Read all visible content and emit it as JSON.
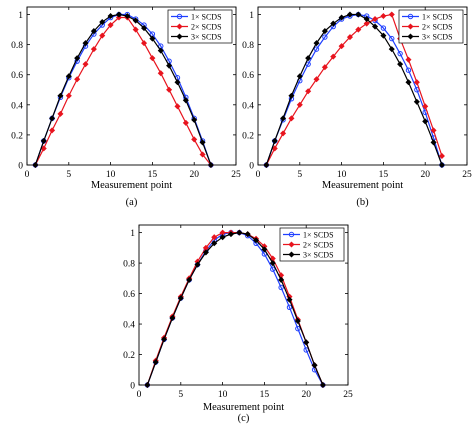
{
  "chart_data": [
    {
      "id": "a",
      "type": "line",
      "caption": "(a)",
      "xlabel": "Measurement point",
      "ylabel": "",
      "xlim": [
        0,
        25
      ],
      "ylim": [
        0,
        1.05
      ],
      "xticks": [
        0,
        5,
        10,
        15,
        20,
        25
      ],
      "yticks": [
        0,
        0.2,
        0.4,
        0.6,
        0.8,
        1
      ],
      "ytick_labels": [
        "0",
        "0.2",
        "0.4",
        "0.6",
        "0.8",
        "1"
      ],
      "grid": false,
      "legend_position": "top-right",
      "legend": [
        "1× SCDS",
        "2× SCDS",
        "3× SCDS"
      ],
      "series": [
        {
          "name": "1× SCDS",
          "color": "#1f3fff",
          "marker": "circle",
          "x": [
            1,
            2,
            3,
            4,
            5,
            6,
            7,
            8,
            9,
            10,
            11,
            12,
            13,
            14,
            15,
            16,
            17,
            18,
            19,
            20,
            21,
            22
          ],
          "y": [
            0.0,
            0.16,
            0.31,
            0.45,
            0.58,
            0.69,
            0.79,
            0.87,
            0.93,
            0.98,
            1.0,
            1.0,
            0.97,
            0.93,
            0.87,
            0.79,
            0.69,
            0.58,
            0.45,
            0.31,
            0.16,
            0.0
          ]
        },
        {
          "name": "2× SCDS",
          "color": "#e8141e",
          "marker": "diamond",
          "x": [
            1,
            2,
            3,
            4,
            5,
            6,
            7,
            8,
            9,
            10,
            11,
            12,
            13,
            14,
            15,
            16,
            17,
            18,
            19,
            20,
            21,
            22
          ],
          "y": [
            0.0,
            0.11,
            0.23,
            0.34,
            0.46,
            0.57,
            0.67,
            0.77,
            0.86,
            0.93,
            0.98,
            0.98,
            0.9,
            0.81,
            0.71,
            0.61,
            0.5,
            0.39,
            0.28,
            0.17,
            0.07,
            0.0
          ]
        },
        {
          "name": "3× SCDS",
          "color": "#000000",
          "marker": "diamond",
          "x": [
            1,
            2,
            3,
            4,
            5,
            6,
            7,
            8,
            9,
            10,
            11,
            12,
            13,
            14,
            15,
            16,
            17,
            18,
            19,
            20,
            21,
            22
          ],
          "y": [
            0.0,
            0.16,
            0.31,
            0.46,
            0.59,
            0.71,
            0.81,
            0.89,
            0.95,
            0.99,
            1.0,
            0.99,
            0.96,
            0.91,
            0.84,
            0.76,
            0.66,
            0.55,
            0.43,
            0.3,
            0.15,
            0.0
          ]
        }
      ]
    },
    {
      "id": "b",
      "type": "line",
      "caption": "(b)",
      "xlabel": "Measurement point",
      "ylabel": "",
      "xlim": [
        0,
        25
      ],
      "ylim": [
        0,
        1.05
      ],
      "xticks": [
        0,
        5,
        10,
        15,
        20,
        25
      ],
      "yticks": [
        0,
        0.2,
        0.4,
        0.6,
        0.8,
        1
      ],
      "ytick_labels": [
        "0",
        "0.2",
        "0.4",
        "0.6",
        "0.8",
        "1"
      ],
      "grid": false,
      "legend_position": "top-right",
      "legend": [
        "1× SCDS",
        "2× SCDS",
        "3× SCDS"
      ],
      "series": [
        {
          "name": "1× SCDS",
          "color": "#1f3fff",
          "marker": "circle",
          "x": [
            1,
            2,
            3,
            4,
            5,
            6,
            7,
            8,
            9,
            10,
            11,
            12,
            13,
            14,
            15,
            16,
            17,
            18,
            19,
            20,
            21,
            22
          ],
          "y": [
            0.0,
            0.16,
            0.3,
            0.44,
            0.56,
            0.67,
            0.77,
            0.85,
            0.92,
            0.97,
            0.99,
            1.0,
            0.99,
            0.96,
            0.91,
            0.84,
            0.74,
            0.63,
            0.5,
            0.35,
            0.18,
            0.0
          ]
        },
        {
          "name": "2× SCDS",
          "color": "#e8141e",
          "marker": "diamond",
          "x": [
            1,
            2,
            3,
            4,
            5,
            6,
            7,
            8,
            9,
            10,
            11,
            12,
            13,
            14,
            15,
            16,
            17,
            18,
            19,
            20,
            21,
            22
          ],
          "y": [
            0.0,
            0.11,
            0.21,
            0.31,
            0.4,
            0.49,
            0.57,
            0.65,
            0.72,
            0.79,
            0.85,
            0.9,
            0.94,
            0.97,
            0.99,
            1.0,
            0.84,
            0.7,
            0.55,
            0.39,
            0.23,
            0.06
          ]
        },
        {
          "name": "3× SCDS",
          "color": "#000000",
          "marker": "diamond",
          "x": [
            1,
            2,
            3,
            4,
            5,
            6,
            7,
            8,
            9,
            10,
            11,
            12,
            13,
            14,
            15,
            16,
            17,
            18,
            19,
            20,
            21,
            22
          ],
          "y": [
            0.0,
            0.16,
            0.31,
            0.46,
            0.59,
            0.71,
            0.81,
            0.89,
            0.94,
            0.98,
            1.0,
            1.0,
            0.97,
            0.92,
            0.86,
            0.77,
            0.67,
            0.55,
            0.42,
            0.29,
            0.15,
            0.0
          ]
        }
      ]
    },
    {
      "id": "c",
      "type": "line",
      "caption": "(c)",
      "xlabel": "Measurement point",
      "ylabel": "",
      "xlim": [
        0,
        25
      ],
      "ylim": [
        0,
        1.05
      ],
      "xticks": [
        0,
        5,
        10,
        15,
        20,
        25
      ],
      "yticks": [
        0,
        0.2,
        0.4,
        0.6,
        0.8,
        1
      ],
      "ytick_labels": [
        "0",
        "0.2",
        "0.4",
        "0.6",
        "0.8",
        "1"
      ],
      "grid": false,
      "legend_position": "top-right",
      "legend": [
        "1× SCDS",
        "2× SCDS",
        "3× SCDS"
      ],
      "series": [
        {
          "name": "1× SCDS",
          "color": "#1f3fff",
          "marker": "circle",
          "x": [
            1,
            2,
            3,
            4,
            5,
            6,
            7,
            8,
            9,
            10,
            11,
            12,
            13,
            14,
            15,
            16,
            17,
            18,
            19,
            20,
            21,
            22
          ],
          "y": [
            0.0,
            0.15,
            0.3,
            0.44,
            0.57,
            0.69,
            0.79,
            0.88,
            0.95,
            0.99,
            1.0,
            1.0,
            0.98,
            0.93,
            0.86,
            0.76,
            0.64,
            0.51,
            0.37,
            0.23,
            0.1,
            0.0
          ]
        },
        {
          "name": "2× SCDS",
          "color": "#e8141e",
          "marker": "diamond",
          "x": [
            1,
            2,
            3,
            4,
            5,
            6,
            7,
            8,
            9,
            10,
            11,
            12,
            13,
            14,
            15,
            16,
            17,
            18,
            19,
            20,
            21,
            22
          ],
          "y": [
            0.0,
            0.16,
            0.31,
            0.45,
            0.58,
            0.7,
            0.81,
            0.9,
            0.97,
            1.0,
            1.0,
            1.0,
            0.99,
            0.96,
            0.91,
            0.83,
            0.72,
            0.58,
            0.43,
            0.28,
            0.13,
            0.0
          ]
        },
        {
          "name": "3× SCDS",
          "color": "#000000",
          "marker": "diamond",
          "x": [
            1,
            2,
            3,
            4,
            5,
            6,
            7,
            8,
            9,
            10,
            11,
            12,
            13,
            14,
            15,
            16,
            17,
            18,
            19,
            20,
            21,
            22
          ],
          "y": [
            0.0,
            0.15,
            0.3,
            0.44,
            0.57,
            0.69,
            0.79,
            0.87,
            0.93,
            0.97,
            0.99,
            1.0,
            0.99,
            0.95,
            0.89,
            0.8,
            0.69,
            0.56,
            0.42,
            0.28,
            0.13,
            0.0
          ]
        }
      ]
    }
  ]
}
